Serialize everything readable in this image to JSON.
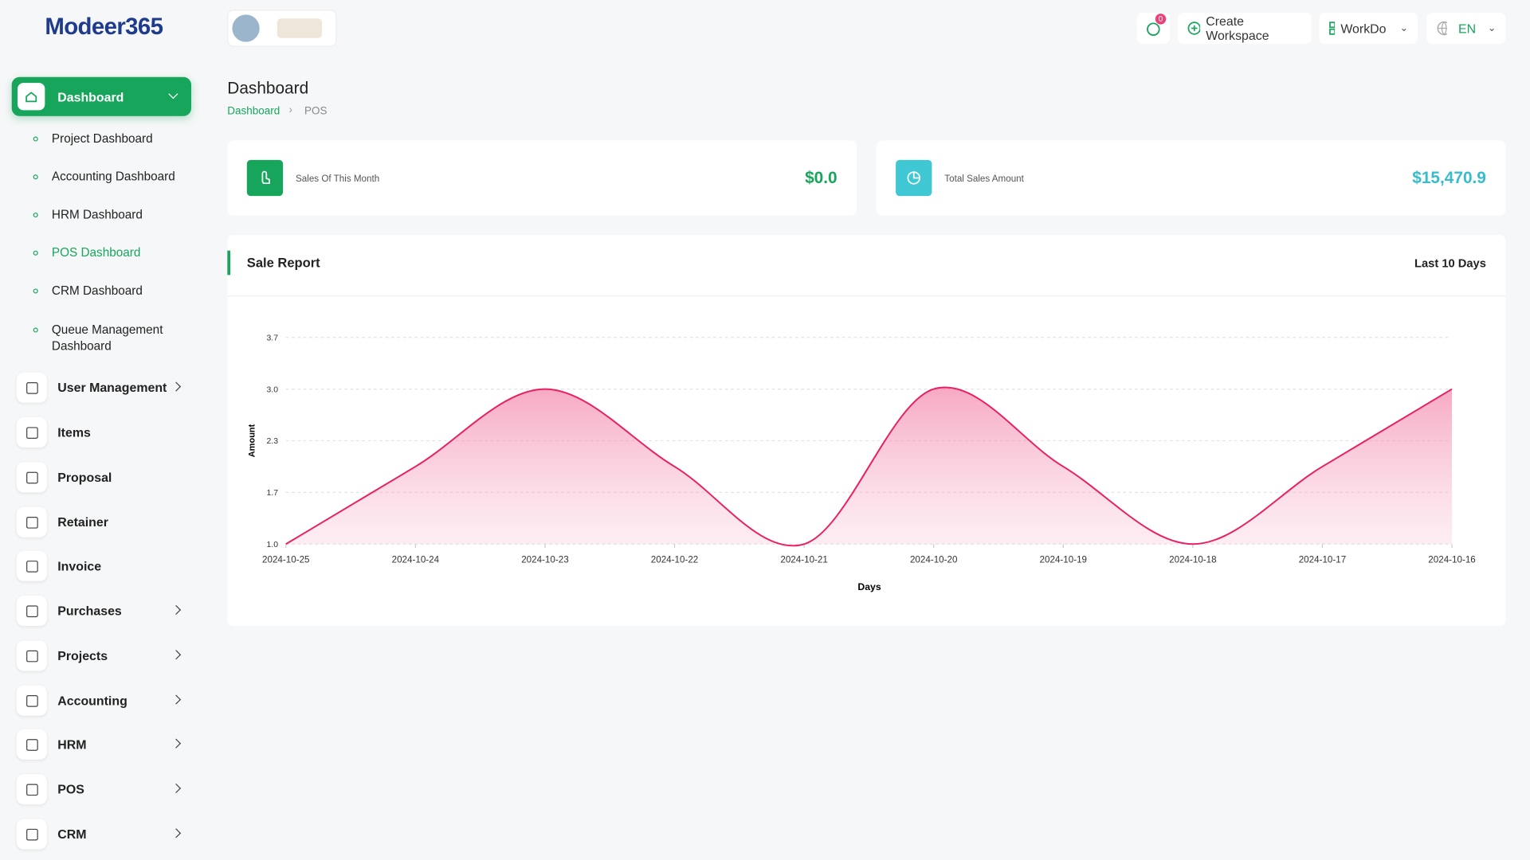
{
  "brand": "Modeer365",
  "topbar": {
    "notifications": "0",
    "create_workspace": "Create Workspace",
    "workspace": "WorkDo",
    "language": "EN"
  },
  "sidebar": {
    "dashboard": "Dashboard",
    "dashboard_items": [
      "Project Dashboard",
      "Accounting Dashboard",
      "HRM Dashboard",
      "POS Dashboard",
      "CRM Dashboard",
      "Queue Management Dashboard"
    ],
    "menu": [
      "User Management",
      "Items",
      "Proposal",
      "Retainer",
      "Invoice",
      "Purchases",
      "Projects",
      "Accounting",
      "HRM",
      "POS",
      "CRM"
    ]
  },
  "page": {
    "title": "Dashboard",
    "breadcrumb": [
      "Dashboard",
      "POS"
    ]
  },
  "cards": [
    {
      "label": "Sales Of This Month",
      "value": "$0.0"
    },
    {
      "label": "Total Sales Amount",
      "value": "$15,470.9"
    }
  ],
  "chart_data": {
    "type": "area",
    "title": "Sale Report",
    "period": "Last 10 Days",
    "x_label": "Days",
    "y_label": "Amount",
    "categories": [
      "2024-10-25",
      "2024-10-24",
      "2024-10-23",
      "2024-10-22",
      "2024-10-21",
      "2024-10-20",
      "2024-10-19",
      "2024-10-18",
      "2024-10-17",
      "2024-10-16"
    ],
    "values": [
      1,
      2,
      3,
      2,
      1,
      3,
      2,
      1,
      2,
      3
    ],
    "color": "#e91e63",
    "ylim": [
      1,
      3.667
    ],
    "yticks": [
      {
        "value": 1,
        "label": "1.0"
      },
      {
        "value": 1.667,
        "label": "1.7"
      },
      {
        "value": 2.333,
        "label": "2.3"
      },
      {
        "value": 3,
        "label": "3.0"
      },
      {
        "value": 3.667,
        "label": "3.7"
      }
    ],
    "grid": true
  }
}
